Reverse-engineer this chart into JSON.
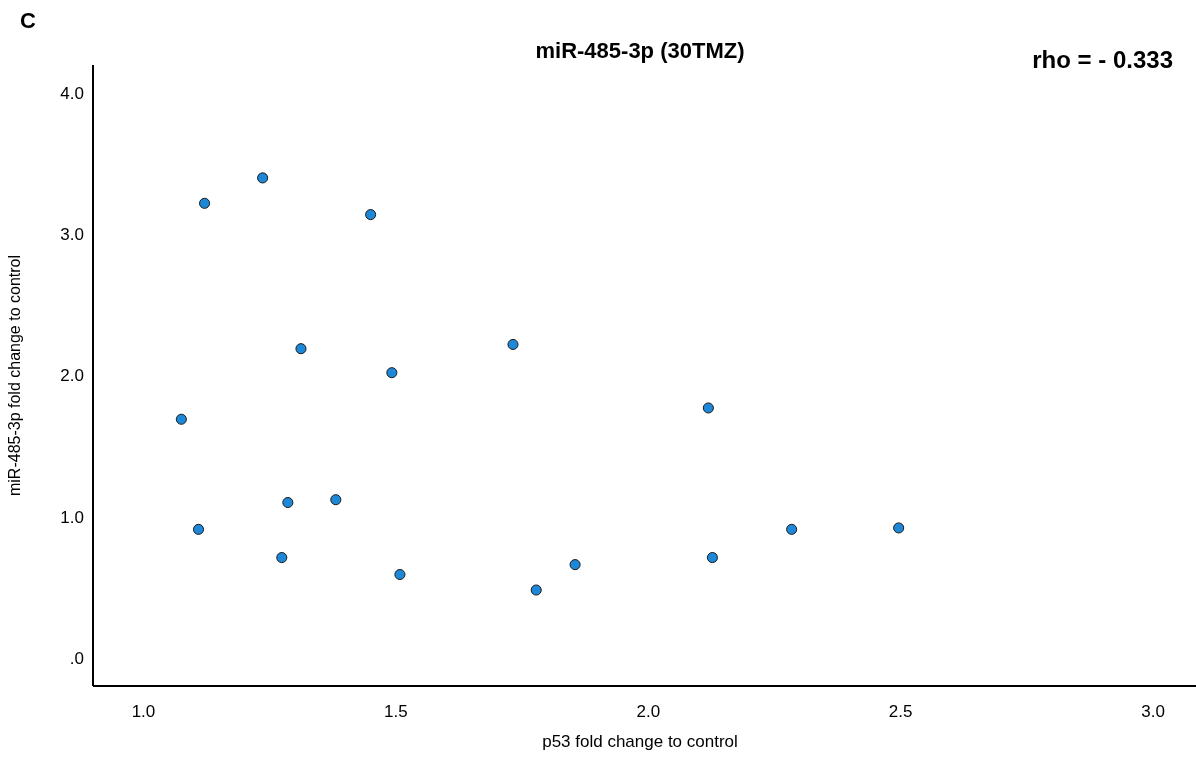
{
  "chart_data": {
    "type": "scatter",
    "title": "miR-485-3p (30TMZ)",
    "xlabel": "p53 fold change to control",
    "ylabel": "miR-485-3p fold change to control",
    "annotations": [
      "C",
      "rho = - 0.333"
    ],
    "x": [
      1.075,
      1.121,
      1.109,
      1.236,
      1.312,
      1.286,
      1.274,
      1.381,
      1.45,
      1.492,
      1.508,
      1.732,
      1.778,
      1.855,
      2.119,
      2.127,
      2.284,
      2.496
    ],
    "series": [
      {
        "color": "#1e88d8",
        "values": [
          1.69,
          3.22,
          0.91,
          3.4,
          2.19,
          1.1,
          0.71,
          1.12,
          3.14,
          2.02,
          0.59,
          2.22,
          0.48,
          0.66,
          1.77,
          0.71,
          0.91,
          0.92
        ]
      }
    ],
    "xlim": [
      0.9,
      3.085
    ],
    "ylim": [
      -0.2,
      4.2
    ],
    "xticks": [
      {
        "value": 1,
        "label": "1.0"
      },
      1.5,
      {
        "value": 2,
        "label": "2.0"
      },
      2.5,
      {
        "value": 3,
        "label": "3.0"
      }
    ],
    "yticks": [
      {
        "value": 0,
        "label": ".0"
      },
      {
        "value": 1,
        "label": "1.0"
      },
      {
        "value": 2,
        "label": "2.0"
      },
      {
        "value": 3,
        "label": "3.0"
      },
      {
        "value": 4,
        "label": "4.0"
      }
    ],
    "marker": "circle",
    "grid": false
  }
}
